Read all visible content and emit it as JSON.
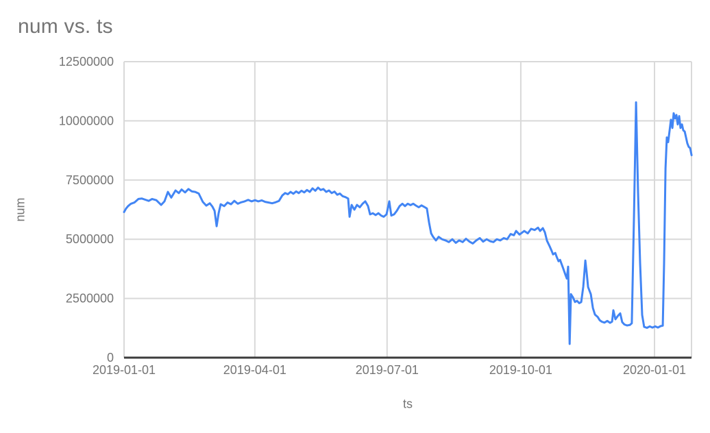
{
  "chart_data": {
    "type": "line",
    "title": "num vs. ts",
    "xlabel": "ts",
    "ylabel": "num",
    "legend": "none",
    "grid": true,
    "x_axis_kind": "time (days since 2019-01-01)",
    "ylim": [
      0,
      12500000
    ],
    "xlim_days": [
      0,
      390.5
    ],
    "colors": {
      "line": "#4285f4",
      "gridline": "#d9d9d9",
      "axis_line": "#3c3c3c",
      "title_text": "#757575",
      "tick_text": "#757575"
    },
    "y_ticks": [
      {
        "value": 0,
        "label": "0"
      },
      {
        "value": 2500000,
        "label": "2500000"
      },
      {
        "value": 5000000,
        "label": "5000000"
      },
      {
        "value": 7500000,
        "label": "7500000"
      },
      {
        "value": 10000000,
        "label": "10000000"
      },
      {
        "value": 12500000,
        "label": "12500000"
      }
    ],
    "x_ticks": [
      {
        "day": 0,
        "label": "2019-01-01"
      },
      {
        "day": 90,
        "label": "2019-04-01"
      },
      {
        "day": 181,
        "label": "2019-07-01"
      },
      {
        "day": 273,
        "label": "2019-10-01"
      },
      {
        "day": 365,
        "label": "2020-01-01"
      }
    ],
    "series": [
      {
        "name": "num",
        "points_day_value": [
          [
            0,
            6150000
          ],
          [
            1.4,
            6300000
          ],
          [
            2.8,
            6400000
          ],
          [
            4.7,
            6500000
          ],
          [
            7.1,
            6550000
          ],
          [
            9.9,
            6700000
          ],
          [
            12.3,
            6720000
          ],
          [
            14.6,
            6670000
          ],
          [
            17,
            6620000
          ],
          [
            19.3,
            6700000
          ],
          [
            22.2,
            6650000
          ],
          [
            25.5,
            6450000
          ],
          [
            27.8,
            6600000
          ],
          [
            30.2,
            7000000
          ],
          [
            32.5,
            6760000
          ],
          [
            35.4,
            7060000
          ],
          [
            37.7,
            6950000
          ],
          [
            39.6,
            7100000
          ],
          [
            42,
            6980000
          ],
          [
            44.3,
            7120000
          ],
          [
            46.7,
            7020000
          ],
          [
            49,
            7000000
          ],
          [
            51.4,
            6930000
          ],
          [
            54.2,
            6580000
          ],
          [
            56.6,
            6420000
          ],
          [
            59,
            6520000
          ],
          [
            60.8,
            6380000
          ],
          [
            62.3,
            6200000
          ],
          [
            63.7,
            5550000
          ],
          [
            65.1,
            6100000
          ],
          [
            66.5,
            6480000
          ],
          [
            68.9,
            6400000
          ],
          [
            71.2,
            6550000
          ],
          [
            73.6,
            6480000
          ],
          [
            75.9,
            6620000
          ],
          [
            78.3,
            6500000
          ],
          [
            80.6,
            6560000
          ],
          [
            83,
            6600000
          ],
          [
            85.4,
            6660000
          ],
          [
            87.7,
            6600000
          ],
          [
            90.1,
            6650000
          ],
          [
            92.4,
            6600000
          ],
          [
            94.8,
            6640000
          ],
          [
            97.1,
            6580000
          ],
          [
            99.5,
            6550000
          ],
          [
            101.9,
            6520000
          ],
          [
            104.2,
            6560000
          ],
          [
            106.6,
            6620000
          ],
          [
            108.9,
            6850000
          ],
          [
            110.8,
            6950000
          ],
          [
            112.7,
            6900000
          ],
          [
            114.6,
            7000000
          ],
          [
            116.5,
            6920000
          ],
          [
            118.4,
            7020000
          ],
          [
            120.2,
            6950000
          ],
          [
            122.1,
            7050000
          ],
          [
            124,
            6980000
          ],
          [
            125.9,
            7080000
          ],
          [
            127.8,
            7000000
          ],
          [
            129.7,
            7150000
          ],
          [
            131.6,
            7050000
          ],
          [
            133.5,
            7180000
          ],
          [
            135.3,
            7080000
          ],
          [
            137.2,
            7120000
          ],
          [
            139.1,
            7000000
          ],
          [
            141,
            7060000
          ],
          [
            142.9,
            6950000
          ],
          [
            144.8,
            7010000
          ],
          [
            146.7,
            6880000
          ],
          [
            148.5,
            6930000
          ],
          [
            150.4,
            6820000
          ],
          [
            152.3,
            6780000
          ],
          [
            154.2,
            6720000
          ],
          [
            155.2,
            5950000
          ],
          [
            156.6,
            6450000
          ],
          [
            158.5,
            6250000
          ],
          [
            160.3,
            6450000
          ],
          [
            162.2,
            6350000
          ],
          [
            164.1,
            6500000
          ],
          [
            166,
            6600000
          ],
          [
            167.9,
            6400000
          ],
          [
            169.3,
            6050000
          ],
          [
            171.2,
            6100000
          ],
          [
            173.1,
            6020000
          ],
          [
            175,
            6100000
          ],
          [
            176.9,
            6000000
          ],
          [
            178.7,
            5950000
          ],
          [
            180.6,
            6050000
          ],
          [
            182.5,
            6600000
          ],
          [
            183.9,
            6000000
          ],
          [
            185.8,
            6050000
          ],
          [
            187.7,
            6200000
          ],
          [
            189.6,
            6400000
          ],
          [
            191.5,
            6500000
          ],
          [
            193.3,
            6400000
          ],
          [
            195.2,
            6500000
          ],
          [
            197.1,
            6440000
          ],
          [
            199,
            6500000
          ],
          [
            200.9,
            6420000
          ],
          [
            202.8,
            6350000
          ],
          [
            204.7,
            6430000
          ],
          [
            206.5,
            6370000
          ],
          [
            208.4,
            6300000
          ],
          [
            209.9,
            5700000
          ],
          [
            211.3,
            5250000
          ],
          [
            212.7,
            5100000
          ],
          [
            214.6,
            4950000
          ],
          [
            216.5,
            5100000
          ],
          [
            218.8,
            5000000
          ],
          [
            221.2,
            4950000
          ],
          [
            223.5,
            4880000
          ],
          [
            225.9,
            5000000
          ],
          [
            228.3,
            4850000
          ],
          [
            230.6,
            4950000
          ],
          [
            233,
            4880000
          ],
          [
            235.3,
            5020000
          ],
          [
            237.7,
            4900000
          ],
          [
            240,
            4820000
          ],
          [
            242.4,
            4950000
          ],
          [
            244.8,
            5050000
          ],
          [
            247.1,
            4900000
          ],
          [
            249.5,
            5000000
          ],
          [
            251.8,
            4920000
          ],
          [
            254.2,
            4880000
          ],
          [
            256.5,
            5000000
          ],
          [
            258.9,
            4950000
          ],
          [
            261.3,
            5050000
          ],
          [
            263.6,
            5000000
          ],
          [
            266,
            5220000
          ],
          [
            268.3,
            5170000
          ],
          [
            269.8,
            5350000
          ],
          [
            272.1,
            5200000
          ],
          [
            275.4,
            5350000
          ],
          [
            277.8,
            5250000
          ],
          [
            280.1,
            5440000
          ],
          [
            282.5,
            5390000
          ],
          [
            284.9,
            5490000
          ],
          [
            286.3,
            5350000
          ],
          [
            288.2,
            5470000
          ],
          [
            289.6,
            5290000
          ],
          [
            291,
            4940000
          ],
          [
            292.9,
            4700000
          ],
          [
            294.3,
            4500000
          ],
          [
            295.2,
            4360000
          ],
          [
            296.7,
            4420000
          ],
          [
            297.6,
            4270000
          ],
          [
            299,
            4070000
          ],
          [
            300,
            4130000
          ],
          [
            301.4,
            3900000
          ],
          [
            302.3,
            3750000
          ],
          [
            303.7,
            3500000
          ],
          [
            304.7,
            3340000
          ],
          [
            305.6,
            3840000
          ],
          [
            306.6,
            580000
          ],
          [
            307.5,
            2680000
          ],
          [
            308.9,
            2550000
          ],
          [
            310.3,
            2350000
          ],
          [
            311.7,
            2400000
          ],
          [
            313.2,
            2300000
          ],
          [
            314.6,
            2350000
          ],
          [
            316,
            3000000
          ],
          [
            317.4,
            4100000
          ],
          [
            318.3,
            3600000
          ],
          [
            319.3,
            2980000
          ],
          [
            321.2,
            2680000
          ],
          [
            322.6,
            2100000
          ],
          [
            324,
            1820000
          ],
          [
            325.9,
            1720000
          ],
          [
            327.3,
            1580000
          ],
          [
            328.7,
            1520000
          ],
          [
            330.6,
            1480000
          ],
          [
            332.5,
            1550000
          ],
          [
            334.4,
            1470000
          ],
          [
            335.8,
            1520000
          ],
          [
            336.7,
            2000000
          ],
          [
            338.1,
            1620000
          ],
          [
            340,
            1780000
          ],
          [
            341.4,
            1870000
          ],
          [
            342.8,
            1500000
          ],
          [
            344.3,
            1400000
          ],
          [
            346.1,
            1360000
          ],
          [
            348,
            1380000
          ],
          [
            349.4,
            1450000
          ],
          [
            350.9,
            6000000
          ],
          [
            352.3,
            10780000
          ],
          [
            353.7,
            7000000
          ],
          [
            355.1,
            4000000
          ],
          [
            356.5,
            1800000
          ],
          [
            357.9,
            1300000
          ],
          [
            359.8,
            1260000
          ],
          [
            361.7,
            1320000
          ],
          [
            363.6,
            1270000
          ],
          [
            365.5,
            1320000
          ],
          [
            367.4,
            1270000
          ],
          [
            369.2,
            1330000
          ],
          [
            370.7,
            1350000
          ],
          [
            371.6,
            4000000
          ],
          [
            372.6,
            8000000
          ],
          [
            373.5,
            9300000
          ],
          [
            374.4,
            9100000
          ],
          [
            375.4,
            9600000
          ],
          [
            376.3,
            10050000
          ],
          [
            377.3,
            9700000
          ],
          [
            378.2,
            10320000
          ],
          [
            379.2,
            10100000
          ],
          [
            380.1,
            10250000
          ],
          [
            381,
            9850000
          ],
          [
            382,
            10200000
          ],
          [
            382.9,
            9700000
          ],
          [
            383.9,
            9850000
          ],
          [
            384.8,
            9600000
          ],
          [
            385.8,
            9550000
          ],
          [
            386.7,
            9300000
          ],
          [
            387.6,
            9050000
          ],
          [
            388.6,
            8900000
          ],
          [
            389.5,
            8850000
          ],
          [
            390.5,
            8550000
          ]
        ]
      }
    ]
  }
}
